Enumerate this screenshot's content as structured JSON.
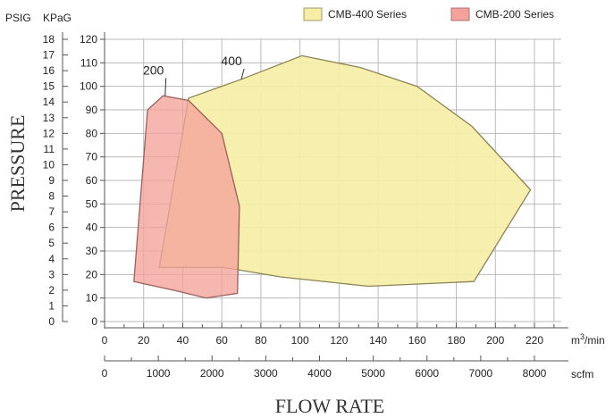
{
  "chart_data": {
    "type": "area",
    "xlabel": "FLOW RATE",
    "ylabel": "PRESSURE",
    "units": {
      "y_psig": "PSIG",
      "y_kpag": "KPaG",
      "x_m3": "m",
      "x_m3_sup": "3",
      "x_m3_tail": "/min",
      "x_scfm": "scfm"
    },
    "x_axis_m3": {
      "range": [
        0,
        220
      ],
      "ticks": [
        0,
        20,
        40,
        60,
        80,
        100,
        120,
        140,
        160,
        180,
        200,
        220
      ],
      "tick_labels": [
        "0",
        "20",
        "40",
        "60",
        "80",
        "100",
        "120",
        "140",
        "160",
        "180",
        "200",
        "220"
      ]
    },
    "x_axis_scfm": {
      "range": [
        0,
        8000
      ],
      "ticks": [
        0,
        1000,
        2000,
        3000,
        4000,
        5000,
        6000,
        7000,
        8000
      ],
      "tick_labels": [
        "0",
        "1000",
        "2000",
        "3000",
        "4000",
        "5000",
        "6000",
        "7000",
        "8000"
      ]
    },
    "y_axis_kpag": {
      "range": [
        0,
        120
      ],
      "ticks": [
        0,
        10,
        20,
        30,
        40,
        50,
        60,
        70,
        80,
        90,
        100,
        110,
        120
      ],
      "tick_labels": [
        "0",
        "10",
        "20",
        "30",
        "40",
        "50",
        "60",
        "70",
        "80",
        "90",
        "100",
        "110",
        "120"
      ]
    },
    "y_axis_psig": {
      "range": [
        0,
        18
      ],
      "ticks": [
        0,
        1,
        2,
        3,
        4,
        5,
        6,
        7,
        8,
        9,
        10,
        11,
        12,
        13,
        14,
        15,
        16,
        17,
        18
      ],
      "tick_labels": [
        "0",
        "1",
        "2",
        "3",
        "4",
        "5",
        "6",
        "7",
        "8",
        "9",
        "10",
        "11",
        "12",
        "13",
        "14",
        "15",
        "16",
        "17",
        "18"
      ]
    },
    "grid": true,
    "legend_placement": "top-right",
    "legend": [
      {
        "label": "CMB-400 Series",
        "color": "#f6eea6"
      },
      {
        "label": "CMB-200 Series",
        "color": "#f3a39b"
      }
    ],
    "series": [
      {
        "name": "CMB-400 Series",
        "callout": "400",
        "color": "#f6eea6",
        "stroke": "#8c8452",
        "points": [
          [
            28,
            23
          ],
          [
            43,
            95
          ],
          [
            70,
            103
          ],
          [
            101,
            113
          ],
          [
            131,
            108
          ],
          [
            160,
            100
          ],
          [
            188,
            83
          ],
          [
            218,
            56
          ],
          [
            189,
            17
          ],
          [
            135,
            15
          ],
          [
            90,
            19
          ],
          [
            61,
            23
          ]
        ]
      },
      {
        "name": "CMB-200 Series",
        "callout": "200",
        "color": "#f3a39b",
        "stroke": "#9c5f59",
        "points": [
          [
            22,
            90
          ],
          [
            30,
            96
          ],
          [
            43,
            94
          ],
          [
            60,
            80
          ],
          [
            69,
            49
          ],
          [
            68,
            12
          ],
          [
            52,
            10
          ],
          [
            37,
            13
          ],
          [
            15,
            17
          ]
        ]
      }
    ],
    "callouts": [
      {
        "text": "200",
        "series": "CMB-200 Series",
        "anchor": [
          31,
          96
        ],
        "label_at": [
          25,
          105
        ]
      },
      {
        "text": "400",
        "series": "CMB-400 Series",
        "anchor": [
          70,
          103
        ],
        "label_at": [
          65,
          109
        ]
      }
    ]
  }
}
